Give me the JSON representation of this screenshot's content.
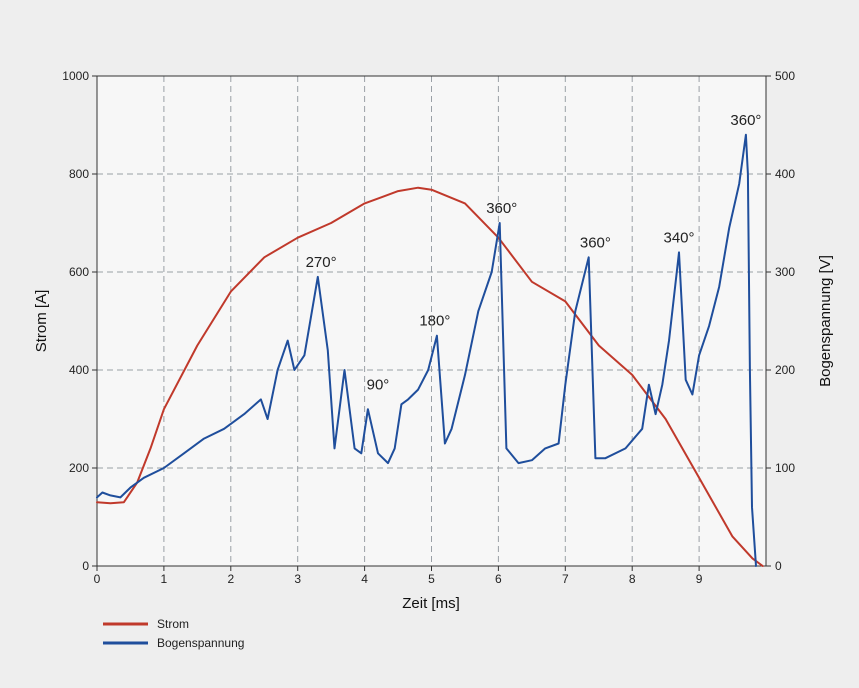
{
  "chart_data": {
    "type": "line",
    "xlabel": "Zeit [ms]",
    "ylabel_left": "Strom [A]",
    "ylabel_right": "Bogenspannung [V]",
    "xlim": [
      0,
      10
    ],
    "ylim_left": [
      0,
      1000
    ],
    "ylim_right": [
      0,
      500
    ],
    "x_ticks": [
      "0",
      "1",
      "2",
      "3",
      "4",
      "5",
      "6",
      "7",
      "8",
      "9"
    ],
    "y_left_ticks": [
      "0",
      "200",
      "400",
      "600",
      "800",
      "1000"
    ],
    "y_right_ticks": [
      "0",
      "100",
      "200",
      "300",
      "400",
      "500"
    ],
    "grid": true,
    "legend_position": "bottom-left",
    "colors": {
      "Strom": "#c0392b",
      "Bogenspannung": "#1f4e9c"
    },
    "series": [
      {
        "name": "Strom",
        "axis": "left",
        "x": [
          0.0,
          0.2,
          0.4,
          0.6,
          0.8,
          1.0,
          1.5,
          2.0,
          2.5,
          3.0,
          3.5,
          4.0,
          4.5,
          4.8,
          5.0,
          5.5,
          6.0,
          6.5,
          7.0,
          7.5,
          8.0,
          8.5,
          9.0,
          9.5,
          9.8,
          9.95
        ],
        "y": [
          130,
          128,
          130,
          170,
          240,
          320,
          450,
          560,
          630,
          670,
          700,
          740,
          765,
          772,
          768,
          740,
          670,
          580,
          540,
          450,
          390,
          300,
          180,
          60,
          15,
          0
        ]
      },
      {
        "name": "Bogenspannung",
        "axis": "right",
        "x": [
          0.0,
          0.08,
          0.2,
          0.35,
          0.5,
          0.7,
          1.0,
          1.3,
          1.6,
          1.9,
          2.2,
          2.45,
          2.55,
          2.7,
          2.85,
          2.95,
          3.1,
          3.3,
          3.45,
          3.55,
          3.7,
          3.85,
          3.95,
          4.05,
          4.2,
          4.35,
          4.45,
          4.55,
          4.65,
          4.8,
          4.95,
          5.08,
          5.2,
          5.3,
          5.5,
          5.7,
          5.9,
          6.02,
          6.12,
          6.3,
          6.5,
          6.7,
          6.9,
          7.0,
          7.15,
          7.35,
          7.45,
          7.6,
          7.9,
          8.15,
          8.25,
          8.35,
          8.45,
          8.55,
          8.7,
          8.8,
          8.9,
          9.0,
          9.15,
          9.3,
          9.45,
          9.6,
          9.7,
          9.73,
          9.76,
          9.79,
          9.85
        ],
        "y": [
          70,
          75,
          72,
          70,
          80,
          90,
          100,
          115,
          130,
          140,
          155,
          170,
          150,
          200,
          230,
          200,
          215,
          295,
          220,
          120,
          200,
          120,
          115,
          160,
          115,
          105,
          120,
          165,
          170,
          180,
          200,
          235,
          125,
          140,
          195,
          260,
          300,
          350,
          120,
          105,
          108,
          120,
          125,
          185,
          260,
          315,
          110,
          110,
          120,
          140,
          185,
          155,
          185,
          230,
          320,
          190,
          175,
          215,
          245,
          285,
          345,
          390,
          440,
          400,
          200,
          60,
          0
        ]
      }
    ],
    "annotations": [
      {
        "text": "270°",
        "x": 3.35,
        "y_right": 295
      },
      {
        "text": "90°",
        "x": 4.2,
        "y_right": 170
      },
      {
        "text": "180°",
        "x": 5.05,
        "y_right": 235
      },
      {
        "text": "360°",
        "x": 6.05,
        "y_right": 350
      },
      {
        "text": "360°",
        "x": 7.45,
        "y_right": 315
      },
      {
        "text": "340°",
        "x": 8.7,
        "y_right": 320
      },
      {
        "text": "360°",
        "x": 9.7,
        "y_right": 440
      }
    ],
    "legend": [
      "Strom",
      "Bogenspannung"
    ]
  }
}
